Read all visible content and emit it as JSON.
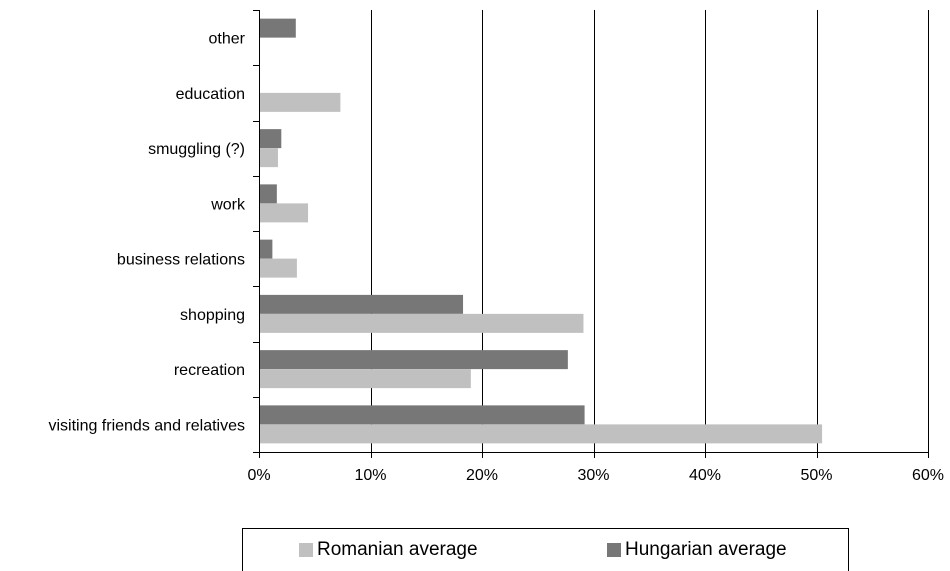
{
  "chart_data": {
    "type": "bar",
    "orientation": "horizontal",
    "categories": [
      "visiting friends and relatives",
      "recreation",
      "shopping",
      "business relations",
      "work",
      "smuggling (?)",
      "education",
      "other"
    ],
    "series": [
      {
        "name": "Hungarian average",
        "color": "#777777",
        "values": [
          29.2,
          27.7,
          18.3,
          1.2,
          1.6,
          2.0,
          0,
          3.3
        ]
      },
      {
        "name": "Romanian average",
        "color": "#c0c0c0",
        "values": [
          50.5,
          19.0,
          29.1,
          3.4,
          4.4,
          1.7,
          7.3,
          0
        ]
      }
    ],
    "xlim": [
      0,
      60
    ],
    "xticks": [
      0,
      10,
      20,
      30,
      40,
      50,
      60
    ],
    "xtick_labels": [
      "0%",
      "10%",
      "20%",
      "30%",
      "40%",
      "50%",
      "60%"
    ],
    "grid": "vertical",
    "legend_position": "bottom"
  },
  "legend": {
    "items": [
      {
        "label": "Romanian average",
        "color": "#c0c0c0"
      },
      {
        "label": "Hungarian average",
        "color": "#777777"
      }
    ]
  }
}
